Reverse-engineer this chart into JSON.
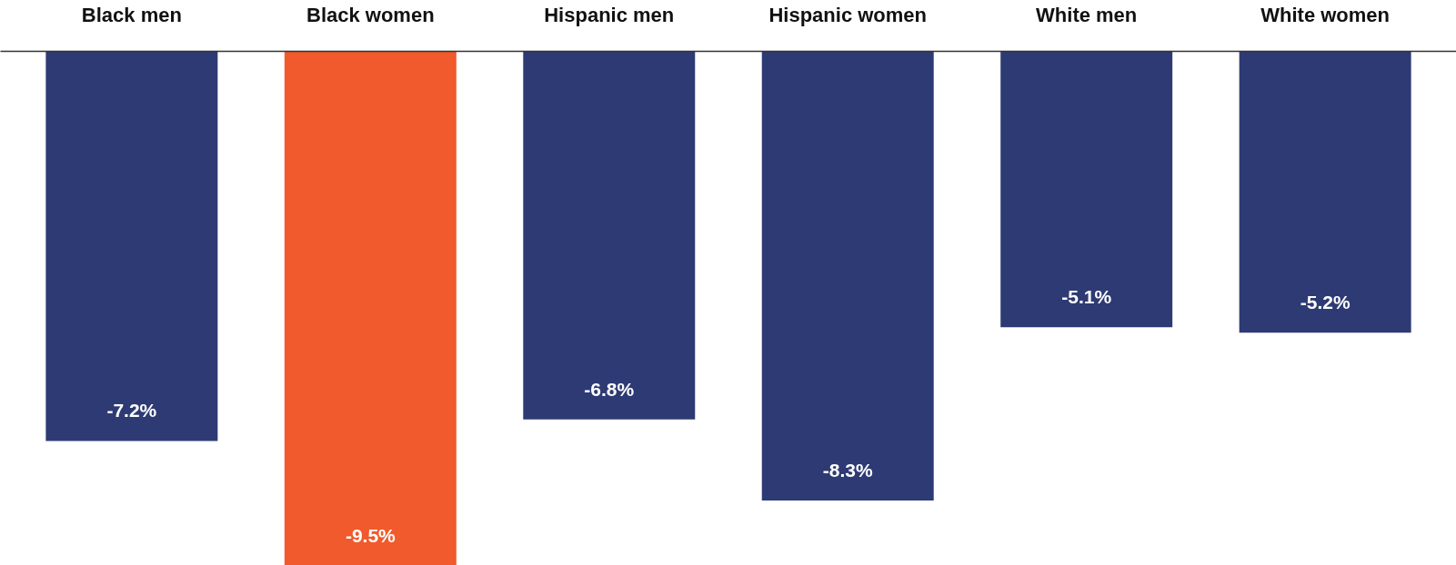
{
  "chart_data": {
    "type": "bar",
    "categories": [
      "Black men",
      "Black women",
      "Hispanic men",
      "Hispanic women",
      "White men",
      "White women"
    ],
    "values": [
      -7.2,
      -9.5,
      -6.8,
      -8.3,
      -5.1,
      -5.2
    ],
    "colors": [
      "#2e3a73",
      "#f05a2c",
      "#2e3a73",
      "#2e3a73",
      "#2e3a73",
      "#2e3a73"
    ],
    "value_labels": [
      "-7.2%",
      "-9.5%",
      "-6.8%",
      "-8.3%",
      "-5.1%",
      "-5.2%"
    ]
  }
}
